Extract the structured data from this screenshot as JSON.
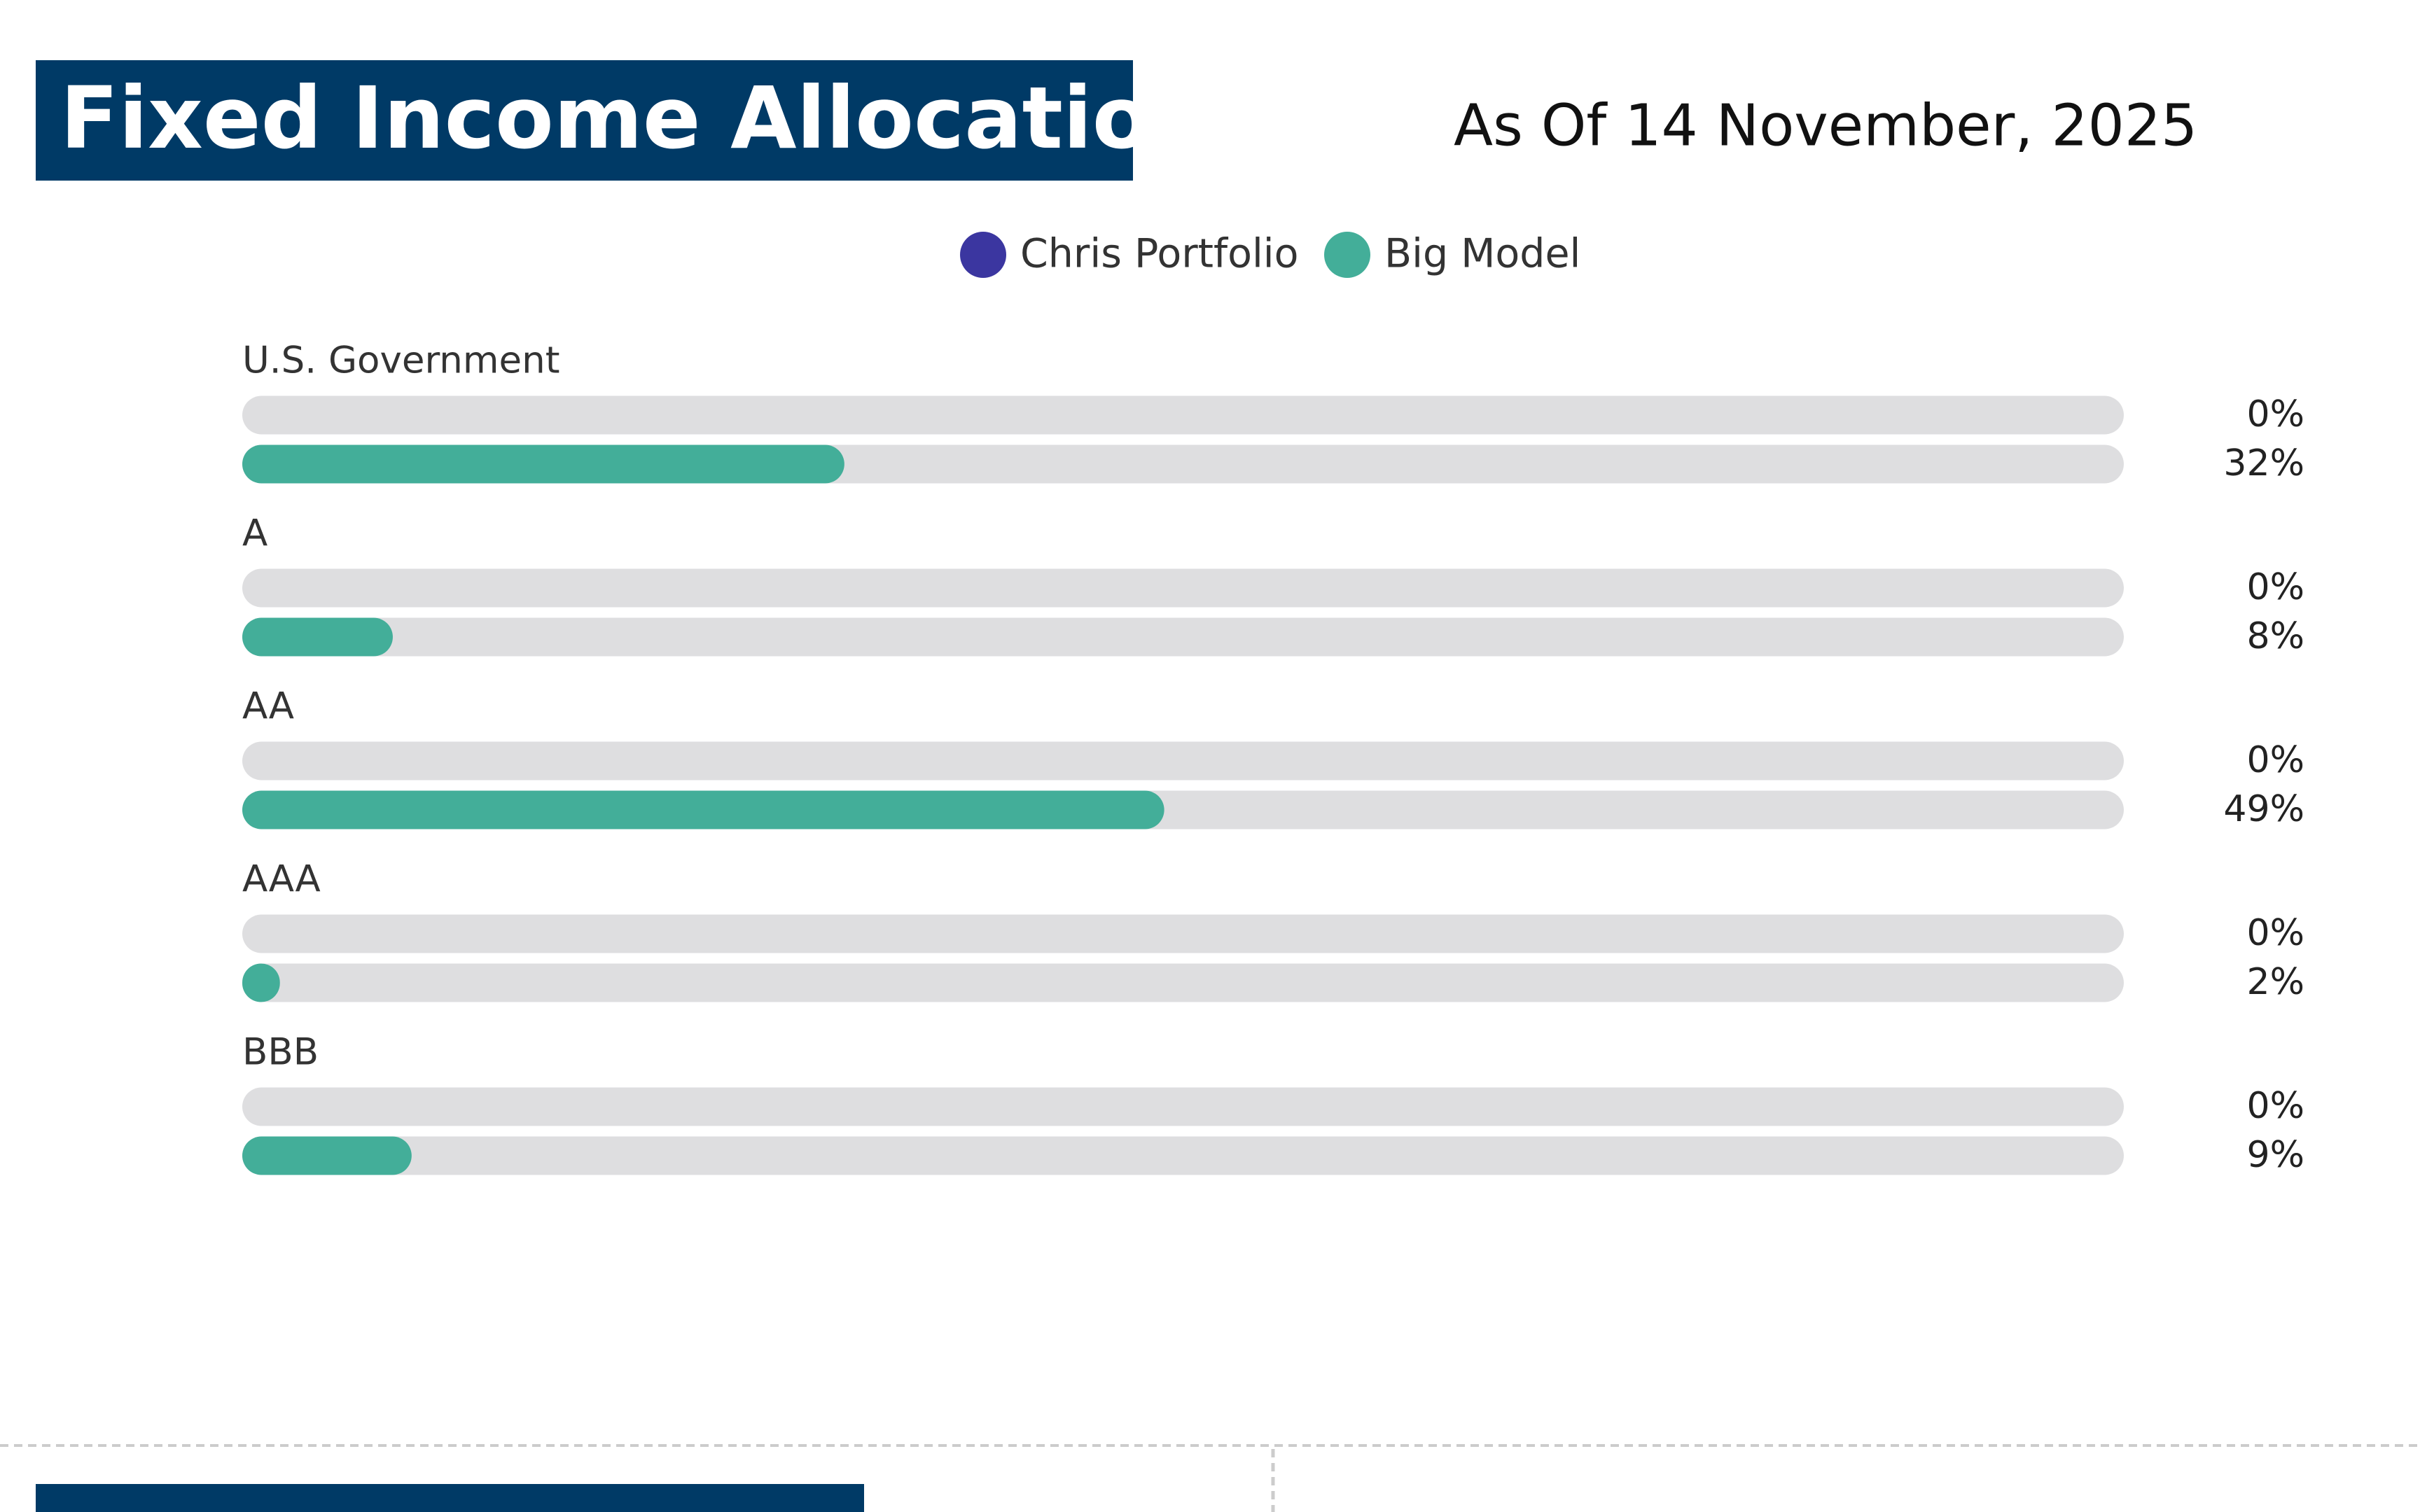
{
  "chart_data": {
    "type": "bar",
    "orientation": "horizontal",
    "title": "Fixed Income Allocation",
    "subtitle": "As Of 14 November, 2025",
    "categories": [
      "U.S. Government",
      "A",
      "AA",
      "AAA",
      "BBB"
    ],
    "series": [
      {
        "name": "Chris Portfolio",
        "color": "#3b36a0",
        "values": [
          0,
          0,
          0,
          0,
          0
        ],
        "value_labels": [
          "0%",
          "0%",
          "0%",
          "0%",
          "0%"
        ]
      },
      {
        "name": "Big Model",
        "color": "#43ae99",
        "values": [
          32,
          8,
          49,
          2,
          9
        ],
        "value_labels": [
          "32%",
          "8%",
          "49%",
          "2%",
          "9%"
        ]
      }
    ],
    "xlim": [
      0,
      100
    ]
  }
}
